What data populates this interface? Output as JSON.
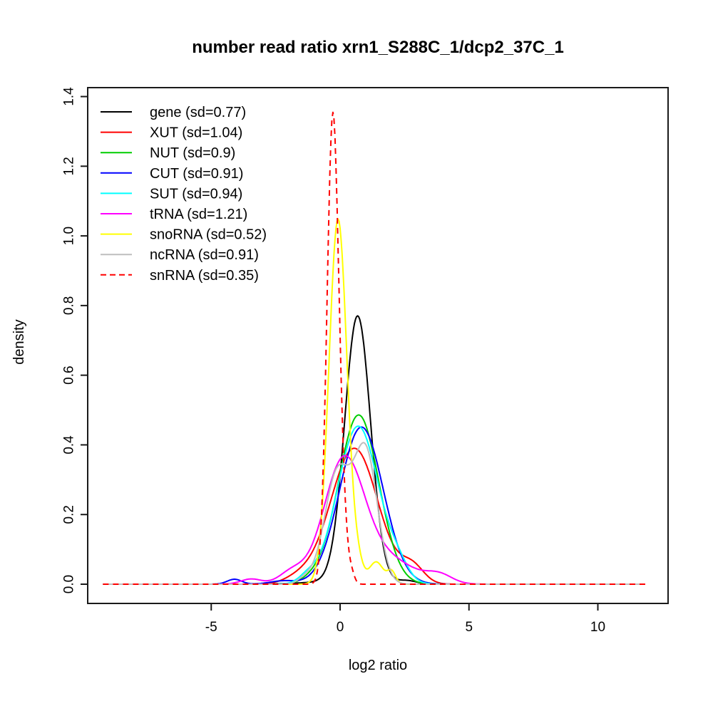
{
  "figure": {
    "background": "#ffffff",
    "title": "number read ratio xrn1_S288C_1/dcp2_37C_1"
  },
  "chart_data": {
    "type": "line",
    "subtype": "density-curves",
    "title": "number read ratio xrn1_S288C_1/dcp2_37C_1",
    "xlabel": "log2 ratio",
    "ylabel": "density",
    "grid": false,
    "legend_position": "top-left",
    "xlim": [
      -9.79,
      12.72
    ],
    "ylim": [
      -0.055,
      1.425
    ],
    "x_data_range": [
      -9.2,
      11.85
    ],
    "x_ticks": [
      {
        "v": -5,
        "label": "-5"
      },
      {
        "v": 0,
        "label": "0"
      },
      {
        "v": 5,
        "label": "5"
      },
      {
        "v": 10,
        "label": "10"
      }
    ],
    "y_ticks": [
      {
        "v": 0.0,
        "label": "0.0"
      },
      {
        "v": 0.2,
        "label": "0.2"
      },
      {
        "v": 0.4,
        "label": "0.4"
      },
      {
        "v": 0.6,
        "label": "0.6"
      },
      {
        "v": 0.8,
        "label": "0.8"
      },
      {
        "v": 1.0,
        "label": "1.0"
      },
      {
        "v": 1.2,
        "label": "1.2"
      },
      {
        "v": 1.4,
        "label": "1.4"
      }
    ],
    "series": [
      {
        "name": "gene",
        "label": "gene (sd=0.77)",
        "sd": 0.77,
        "color": "#000000",
        "dash": false,
        "peak": {
          "x": 0.68,
          "y": 0.78
        },
        "components": [
          [
            0.68,
            0.5,
            0.955
          ],
          [
            0.2,
            1.3,
            0.03
          ],
          [
            2.6,
            0.35,
            0.008
          ]
        ]
      },
      {
        "name": "XUT",
        "label": "XUT (sd=1.04)",
        "sd": 1.04,
        "color": "#ff0000",
        "dash": false,
        "peak": {
          "x": 0.55,
          "y": 0.41
        },
        "components": [
          [
            0.55,
            0.92,
            0.9
          ],
          [
            2.8,
            0.45,
            0.055
          ],
          [
            -1.6,
            0.55,
            0.025
          ]
        ]
      },
      {
        "name": "NUT",
        "label": "NUT (sd=0.9)",
        "sd": 0.9,
        "color": "#00cd00",
        "dash": false,
        "peak": {
          "x": 0.72,
          "y": 0.49
        },
        "components": [
          [
            0.72,
            0.78,
            0.95
          ],
          [
            -1.1,
            0.4,
            0.012
          ]
        ]
      },
      {
        "name": "CUT",
        "label": "CUT (sd=0.91)",
        "sd": 0.91,
        "color": "#0000ff",
        "dash": false,
        "peak": {
          "x": 0.83,
          "y": 0.455
        },
        "components": [
          [
            0.83,
            0.84,
            0.95
          ],
          [
            -4.1,
            0.28,
            0.01
          ],
          [
            -2.2,
            0.5,
            0.012
          ]
        ]
      },
      {
        "name": "SUT",
        "label": "SUT (sd=0.94)",
        "sd": 0.94,
        "color": "#00ffff",
        "dash": false,
        "peak": {
          "x": 0.7,
          "y": 0.465
        },
        "components": [
          [
            0.7,
            0.8,
            0.91
          ],
          [
            2.25,
            0.4,
            0.04
          ],
          [
            -1.25,
            0.35,
            0.018
          ]
        ]
      },
      {
        "name": "tRNA",
        "label": "tRNA (sd=1.21)",
        "sd": 1.21,
        "color": "#ff00ff",
        "dash": false,
        "peak": {
          "x": 0.14,
          "y": 0.38
        },
        "components": [
          [
            0.14,
            0.78,
            0.68
          ],
          [
            1.8,
            1.05,
            0.19
          ],
          [
            3.85,
            0.5,
            0.03
          ],
          [
            -1.85,
            0.5,
            0.045
          ],
          [
            -3.45,
            0.4,
            0.015
          ]
        ]
      },
      {
        "name": "snoRNA",
        "label": "snoRNA (sd=0.52)",
        "sd": 0.52,
        "color": "#ffff00",
        "dash": false,
        "peak": {
          "x": -0.08,
          "y": 1.05
        },
        "components": [
          [
            -0.08,
            0.35,
            0.92
          ],
          [
            0.7,
            0.2,
            0.02
          ],
          [
            1.4,
            0.28,
            0.045
          ],
          [
            2.0,
            0.16,
            0.014
          ]
        ]
      },
      {
        "name": "ncRNA",
        "label": "ncRNA (sd=0.91)",
        "sd": 0.91,
        "color": "#bebebe",
        "dash": false,
        "peak": {
          "x": 1.0,
          "y": 0.4
        },
        "components": [
          [
            1.0,
            0.45,
            0.42
          ],
          [
            -0.1,
            0.5,
            0.4
          ],
          [
            -1.35,
            0.28,
            0.012
          ]
        ]
      },
      {
        "name": "snRNA",
        "label": "snRNA (sd=0.35)",
        "sd": 0.35,
        "color": "#ff0000",
        "dash": true,
        "peak": {
          "x": -0.28,
          "y": 1.37
        },
        "components": [
          [
            -0.28,
            0.225,
            0.76
          ],
          [
            0.12,
            0.17,
            0.05
          ],
          [
            0.45,
            0.12,
            0.008
          ]
        ]
      }
    ]
  }
}
